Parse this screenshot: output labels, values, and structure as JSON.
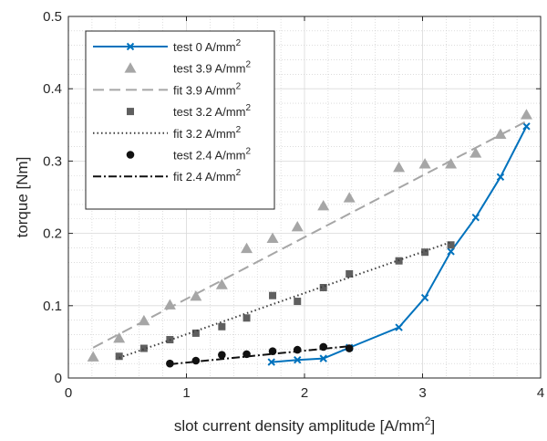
{
  "chart_data": {
    "type": "scatter",
    "title": "",
    "xlabel": "slot current density amplitude [A/mm",
    "xlabel_sup": "2",
    "xlabel_close": "]",
    "ylabel": "torque [Nm]",
    "xlim": [
      0,
      4
    ],
    "ylim": [
      0,
      0.5
    ],
    "xticks": [
      0,
      1,
      2,
      3,
      4
    ],
    "xtick_labels": [
      "0",
      "1",
      "2",
      "3",
      "4"
    ],
    "yticks": [
      0,
      0.1,
      0.2,
      0.3,
      0.4,
      0.5
    ],
    "ytick_labels": [
      "0",
      "0.1",
      "0.2",
      "0.3",
      "0.4",
      "0.5"
    ],
    "grid": true,
    "minor_grid": true,
    "legend_position": "top-left",
    "series": [
      {
        "name": "test 0 A/mm",
        "name_sup": "2",
        "style": "line-x",
        "color": "#0072BD",
        "x": [
          1.72,
          1.94,
          2.16,
          2.38,
          2.8,
          3.02,
          3.24,
          3.45,
          3.66,
          3.88
        ],
        "y": [
          0.022,
          0.025,
          0.027,
          0.042,
          0.07,
          0.111,
          0.175,
          0.222,
          0.278,
          0.348
        ]
      },
      {
        "name": "test 3.9 A/mm",
        "name_sup": "2",
        "style": "triangle",
        "color": "#A6A6A6",
        "x": [
          0.21,
          0.43,
          0.64,
          0.86,
          1.08,
          1.3,
          1.51,
          1.73,
          1.94,
          2.16,
          2.38,
          2.8,
          3.02,
          3.24,
          3.45,
          3.66,
          3.88
        ],
        "y": [
          0.029,
          0.055,
          0.079,
          0.101,
          0.113,
          0.129,
          0.179,
          0.193,
          0.209,
          0.238,
          0.249,
          0.291,
          0.296,
          0.296,
          0.311,
          0.337,
          0.364
        ]
      },
      {
        "name": "fit 3.9 A/mm",
        "name_sup": "2",
        "style": "dashed",
        "color": "#A6A6A6",
        "x": [
          0.21,
          3.88
        ],
        "y": [
          0.042,
          0.355
        ]
      },
      {
        "name": "test 3.2 A/mm",
        "name_sup": "2",
        "style": "square",
        "color": "#5F5F5F",
        "x": [
          0.43,
          0.64,
          0.86,
          1.08,
          1.3,
          1.51,
          1.73,
          1.94,
          2.16,
          2.38,
          2.8,
          3.02,
          3.24
        ],
        "y": [
          0.03,
          0.041,
          0.053,
          0.062,
          0.071,
          0.083,
          0.114,
          0.106,
          0.125,
          0.144,
          0.162,
          0.174,
          0.184
        ]
      },
      {
        "name": "fit 3.2 A/mm",
        "name_sup": "2",
        "style": "dotted",
        "color": "#3C3C3C",
        "x": [
          0.43,
          3.24
        ],
        "y": [
          0.028,
          0.188
        ]
      },
      {
        "name": "test 2.4 A/mm",
        "name_sup": "2",
        "style": "circle",
        "color": "#111111",
        "x": [
          0.86,
          1.08,
          1.3,
          1.51,
          1.73,
          1.94,
          2.16,
          2.38
        ],
        "y": [
          0.02,
          0.024,
          0.032,
          0.033,
          0.037,
          0.039,
          0.043,
          0.041
        ]
      },
      {
        "name": "fit 2.4 A/mm",
        "name_sup": "2",
        "style": "dashdot",
        "color": "#111111",
        "x": [
          0.86,
          2.38
        ],
        "y": [
          0.019,
          0.044
        ]
      }
    ]
  }
}
